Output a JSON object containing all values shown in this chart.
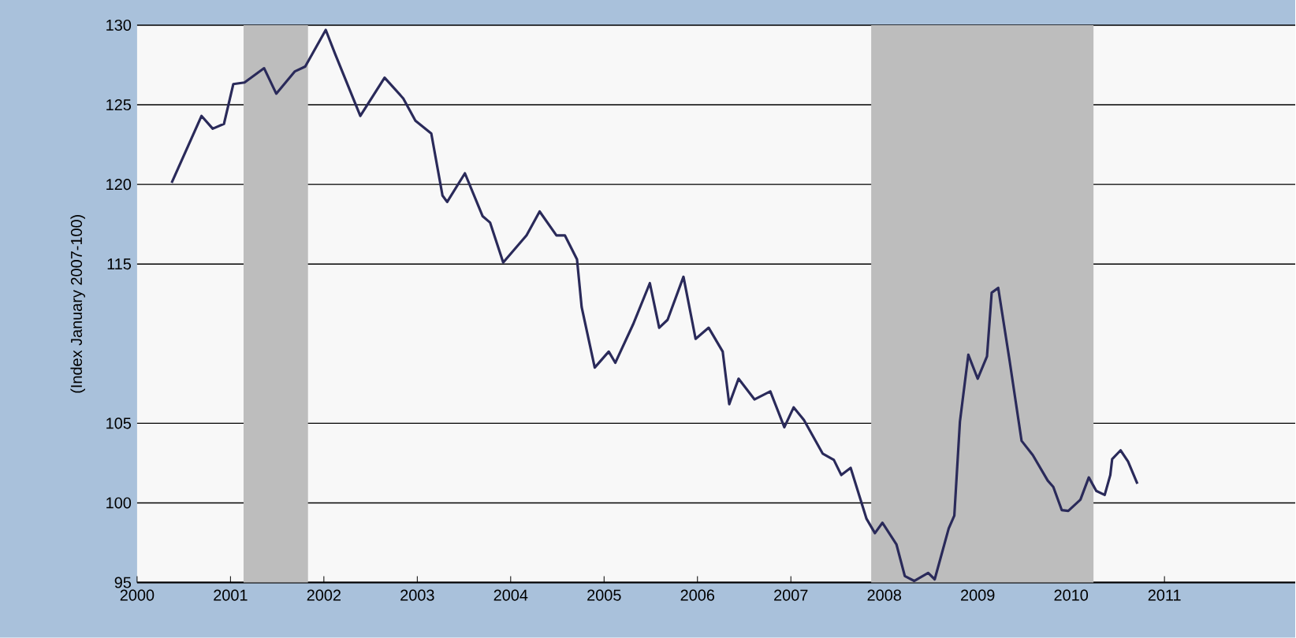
{
  "chart_data": {
    "type": "line",
    "ylabel": "(Index January 2007-100)",
    "x": [
      2000.37,
      2000.69,
      2000.81,
      2000.93,
      2001.03,
      2001.15,
      2001.36,
      2001.49,
      2001.69,
      2001.8,
      2002.02,
      2002.12,
      2002.39,
      2002.65,
      2002.85,
      2002.98,
      2003.15,
      2003.27,
      2003.32,
      2003.51,
      2003.7,
      2003.78,
      2003.92,
      2004.17,
      2004.31,
      2004.49,
      2004.58,
      2004.71,
      2004.76,
      2004.9,
      2005.05,
      2005.12,
      2005.31,
      2005.49,
      2005.59,
      2005.68,
      2005.85,
      2005.98,
      2006.12,
      2006.27,
      2006.34,
      2006.44,
      2006.61,
      2006.78,
      2006.93,
      2007.03,
      2007.14,
      2007.34,
      2007.46,
      2007.54,
      2007.64,
      2007.81,
      2007.9,
      2007.98,
      2008.13,
      2008.22,
      2008.32,
      2008.47,
      2008.54,
      2008.69,
      2008.75,
      2008.81,
      2008.9,
      2009.0,
      2009.1,
      2009.15,
      2009.22,
      2009.34,
      2009.47,
      2009.59,
      2009.75,
      2009.81,
      2009.9,
      2009.97,
      2010.1,
      2010.19,
      2010.27,
      2010.36,
      2010.42,
      2010.44,
      2010.53,
      2010.61,
      2010.71
    ],
    "series": [
      {
        "color": "#2a2a5a",
        "values": [
          120.1,
          124.3,
          123.5,
          123.8,
          126.3,
          126.4,
          127.3,
          125.7,
          127.1,
          127.4,
          129.7,
          128.2,
          124.3,
          126.7,
          125.4,
          124.0,
          123.2,
          119.3,
          118.9,
          120.7,
          118.0,
          117.6,
          115.1,
          116.8,
          118.3,
          116.8,
          116.8,
          115.3,
          112.3,
          108.5,
          109.5,
          108.8,
          111.2,
          113.8,
          111.0,
          111.5,
          114.2,
          110.3,
          111.0,
          109.5,
          106.2,
          107.8,
          106.5,
          107.0,
          104.75,
          106.0,
          105.2,
          103.1,
          102.7,
          101.75,
          102.2,
          99.0,
          98.1,
          98.75,
          97.4,
          95.4,
          95.1,
          95.6,
          95.2,
          98.4,
          99.2,
          105.1,
          109.3,
          107.8,
          109.2,
          113.2,
          113.5,
          109.0,
          103.9,
          103.0,
          101.4,
          101.0,
          99.55,
          99.5,
          100.2,
          101.6,
          100.75,
          100.5,
          101.75,
          102.75,
          103.3,
          102.6,
          101.2
        ]
      }
    ],
    "xlim": [
      2000,
      2012.4
    ],
    "xticks": [
      2000,
      2001,
      2002,
      2003,
      2004,
      2005,
      2006,
      2007,
      2008,
      2009,
      2010,
      2011
    ],
    "ylim": [
      95,
      130
    ],
    "yticks": [
      95,
      100,
      105,
      115,
      120,
      125,
      130
    ],
    "grid": "y",
    "legend": false,
    "marker": "none",
    "line_style": "solid",
    "bands": [
      {
        "axis": "x",
        "from": 2001.14,
        "to": 2001.83,
        "color": "#bdbdbd"
      },
      {
        "axis": "x",
        "from": 2007.86,
        "to": 2010.24,
        "color": "#bdbdbd"
      }
    ]
  }
}
